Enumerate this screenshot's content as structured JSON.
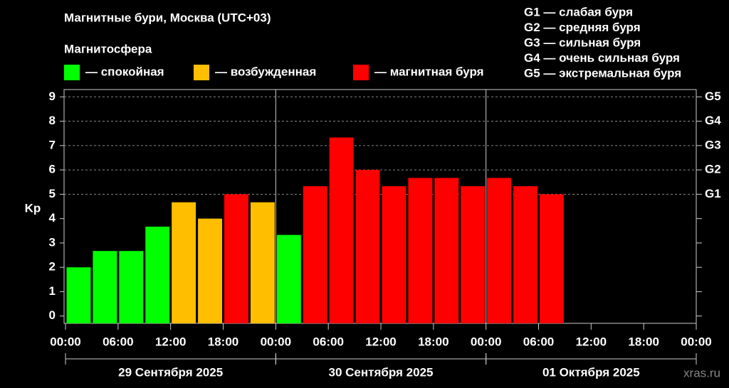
{
  "chart_data": {
    "type": "bar",
    "title": "Магнитные бури, Москва (UTC+03)",
    "legend_title": "Магнитосфера",
    "legend": [
      {
        "name": "— спокойная",
        "color": "#00ff00"
      },
      {
        "name": "— возбужденная",
        "color": "#ffbf00"
      },
      {
        "name": "— магнитная буря",
        "color": "#ff0000"
      }
    ],
    "scale_legend": [
      "G1 — слабая буря",
      "G2 — средняя буря",
      "G3 — сильная буря",
      "G4 — очень сильная буря",
      "G5 — экстремальная буря"
    ],
    "ylabel": "Kp",
    "x": [
      0,
      3,
      6,
      9,
      12,
      15,
      18,
      21,
      24,
      27,
      30,
      33,
      36,
      39,
      42,
      45,
      48,
      51,
      54
    ],
    "values": [
      2,
      2.67,
      2.67,
      3.67,
      4.67,
      4,
      5,
      4.67,
      3.33,
      5.33,
      7.33,
      6,
      5.33,
      5.67,
      5.67,
      5.33,
      5.67,
      5.33,
      5
    ],
    "colors": [
      "#00ff00",
      "#00ff00",
      "#00ff00",
      "#00ff00",
      "#ffbf00",
      "#ffbf00",
      "#ff0000",
      "#ffbf00",
      "#00ff00",
      "#ff0000",
      "#ff0000",
      "#ff0000",
      "#ff0000",
      "#ff0000",
      "#ff0000",
      "#ff0000",
      "#ff0000",
      "#ff0000",
      "#ff0000"
    ],
    "xlim": [
      0,
      72
    ],
    "xticks": [
      {
        "value": 0,
        "label": "00:00"
      },
      {
        "value": 6,
        "label": "06:00"
      },
      {
        "value": 12,
        "label": "12:00"
      },
      {
        "value": 18,
        "label": "18:00"
      },
      {
        "value": 24,
        "label": "00:00"
      },
      {
        "value": 30,
        "label": "06:00"
      },
      {
        "value": 36,
        "label": "12:00"
      },
      {
        "value": 42,
        "label": "18:00"
      },
      {
        "value": 48,
        "label": "00:00"
      },
      {
        "value": 54,
        "label": "06:00"
      },
      {
        "value": 60,
        "label": "12:00"
      },
      {
        "value": 66,
        "label": "18:00"
      },
      {
        "value": 72,
        "label": "00:00"
      }
    ],
    "days": [
      {
        "label": "29 Сентября 2025",
        "range": [
          0,
          24
        ]
      },
      {
        "label": "30 Сентября 2025",
        "range": [
          24,
          48
        ]
      },
      {
        "label": "01 Октября 2025",
        "range": [
          48,
          72
        ]
      }
    ],
    "ylim": [
      -0.3,
      9.3
    ],
    "yticks": [
      0,
      1,
      2,
      3,
      4,
      5,
      6,
      7,
      8,
      9
    ],
    "y2ticks": [
      {
        "value": 5,
        "label": "G1"
      },
      {
        "value": 6,
        "label": "G2"
      },
      {
        "value": 7,
        "label": "G3"
      },
      {
        "value": 8,
        "label": "G4"
      },
      {
        "value": 9,
        "label": "G5"
      }
    ],
    "grid": true,
    "watermark": "xras.ru"
  }
}
